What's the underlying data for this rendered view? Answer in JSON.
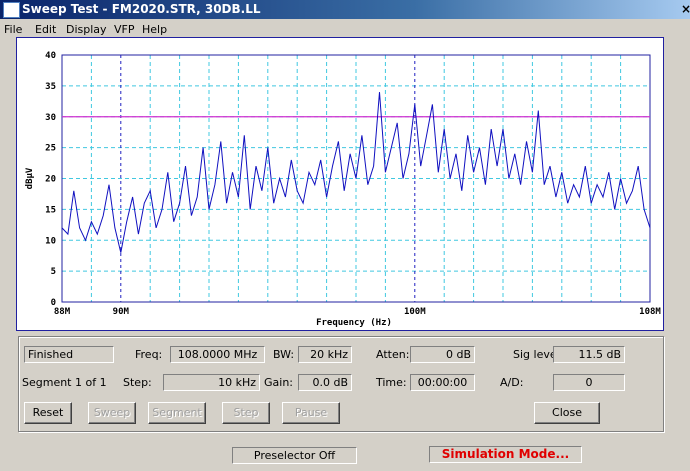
{
  "window": {
    "title": "Sweep Test - FM2020.STR, 30DB.LL"
  },
  "menu": [
    "File",
    "Edit",
    "Display",
    "VFP",
    "Help"
  ],
  "chart_data": {
    "type": "line",
    "x_label": "Frequency (Hz)",
    "y_label": "dBµV",
    "xlim": [
      88,
      108
    ],
    "ylim": [
      0,
      40
    ],
    "yticks": [
      0,
      5,
      10,
      15,
      20,
      25,
      30,
      35,
      40
    ],
    "xticks": [
      {
        "value": 88,
        "label": "88M"
      },
      {
        "value": 90,
        "label": "90M"
      },
      {
        "value": 100,
        "label": "100M"
      },
      {
        "value": 108,
        "label": "108M"
      }
    ],
    "xgrid": [
      89,
      91,
      92,
      93,
      94,
      95,
      96,
      97,
      98,
      99,
      101,
      102,
      103,
      104,
      105,
      106,
      107
    ],
    "threshold": 30,
    "threshold_color": "#d030d0",
    "grid_color": "#40c8e0",
    "major_grid_color": "#2020c0",
    "series": [
      {
        "color": "#1010c0",
        "x": [
          88.0,
          88.2,
          88.4,
          88.6,
          88.8,
          89.0,
          89.2,
          89.4,
          89.6,
          89.8,
          90.0,
          90.2,
          90.4,
          90.6,
          90.8,
          91.0,
          91.2,
          91.4,
          91.6,
          91.8,
          92.0,
          92.2,
          92.4,
          92.6,
          92.8,
          93.0,
          93.2,
          93.4,
          93.6,
          93.8,
          94.0,
          94.2,
          94.4,
          94.6,
          94.8,
          95.0,
          95.2,
          95.4,
          95.6,
          95.8,
          96.0,
          96.2,
          96.4,
          96.6,
          96.8,
          97.0,
          97.2,
          97.4,
          97.6,
          97.8,
          98.0,
          98.2,
          98.4,
          98.6,
          98.8,
          99.0,
          99.2,
          99.4,
          99.6,
          99.8,
          100.0,
          100.2,
          100.4,
          100.6,
          100.8,
          101.0,
          101.2,
          101.4,
          101.6,
          101.8,
          102.0,
          102.2,
          102.4,
          102.6,
          102.8,
          103.0,
          103.2,
          103.4,
          103.6,
          103.8,
          104.0,
          104.2,
          104.4,
          104.6,
          104.8,
          105.0,
          105.2,
          105.4,
          105.6,
          105.8,
          106.0,
          106.2,
          106.4,
          106.6,
          106.8,
          107.0,
          107.2,
          107.4,
          107.6,
          107.8,
          108.0
        ],
        "values": [
          12,
          11,
          18,
          12,
          10,
          13,
          11,
          14,
          19,
          12,
          8,
          13,
          17,
          11,
          16,
          18,
          12,
          15,
          21,
          13,
          16,
          22,
          14,
          17,
          25,
          15,
          19,
          26,
          16,
          21,
          17,
          27,
          15,
          22,
          18,
          25,
          16,
          20,
          17,
          23,
          18,
          16,
          21,
          19,
          23,
          17,
          22,
          26,
          18,
          24,
          20,
          27,
          19,
          22,
          34,
          21,
          25,
          29,
          20,
          24,
          32,
          22,
          27,
          32,
          21,
          28,
          20,
          24,
          18,
          27,
          21,
          25,
          19,
          28,
          22,
          28,
          20,
          24,
          19,
          26,
          21,
          31,
          19,
          22,
          17,
          21,
          16,
          19,
          17,
          22,
          16,
          19,
          17,
          21,
          15,
          20,
          16,
          18,
          22,
          15,
          12
        ]
      }
    ]
  },
  "controls": {
    "status": "Finished",
    "freq_label": "Freq:",
    "freq": "108.0000 MHz",
    "bw_label": "BW:",
    "bw": "20 kHz",
    "atten_label": "Atten:",
    "atten": "0 dB",
    "sig_label": "Sig level:",
    "sig": "11.5 dB",
    "segment": "Segment 1 of 1",
    "step_label": "Step:",
    "step": "10 kHz",
    "gain_label": "Gain:",
    "gain": "0.0 dB",
    "time_label": "Time:",
    "time": "00:00:00",
    "ad_label": "A/D:",
    "ad": "0"
  },
  "buttons": [
    "Reset",
    "Sweep",
    "Segment",
    "Step",
    "Pause",
    "Close"
  ],
  "statusbar": {
    "preselector": "Preselector Off",
    "mode": "Simulation Mode..."
  }
}
